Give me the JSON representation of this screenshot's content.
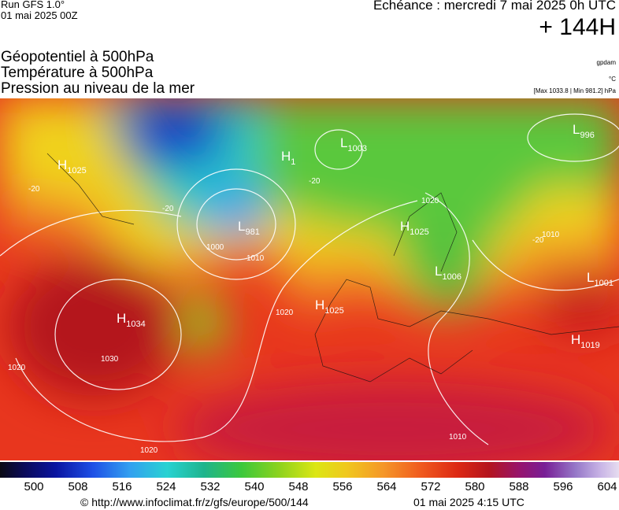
{
  "header": {
    "run": "Run GFS 1.0°",
    "run_date": "01 mai 2025 00Z",
    "valid_time": "Echéance : mercredi 7 mai 2025 0h UTC",
    "lead_time": "+ 144H",
    "layers": [
      "Géopotentiel à 500hPa",
      "Température à 500hPa",
      "Pression au niveau de la mer"
    ],
    "units": [
      "gpdam",
      "°C",
      "[Max 1033.8 | Min 981.2] hPa"
    ]
  },
  "pressure_centers": [
    {
      "type": "H",
      "value": "1025"
    },
    {
      "type": "H",
      "value": "1034"
    },
    {
      "type": "L",
      "value": "981"
    },
    {
      "type": "H",
      "value": "1"
    },
    {
      "type": "L",
      "value": "1003"
    },
    {
      "type": "L",
      "value": "996"
    },
    {
      "type": "H",
      "value": "1025"
    },
    {
      "type": "L",
      "value": "1006"
    },
    {
      "type": "L",
      "value": "1001"
    },
    {
      "type": "H",
      "value": "1025"
    },
    {
      "type": "H",
      "value": "1019"
    }
  ],
  "contour_labels": [
    "1030",
    "1020",
    "1020",
    "1020",
    "1000",
    "1010",
    "-20",
    "-20",
    "-20",
    "1020",
    "1010",
    "-20",
    "1010"
  ],
  "colorbar": {
    "ticks": [
      500,
      508,
      516,
      524,
      532,
      540,
      548,
      556,
      564,
      572,
      580,
      588,
      596,
      604
    ]
  },
  "footer": {
    "source": "© http://www.infoclimat.fr/z/gfs/europe/500/144",
    "issued": "01 mai 2025  4:15 UTC"
  }
}
